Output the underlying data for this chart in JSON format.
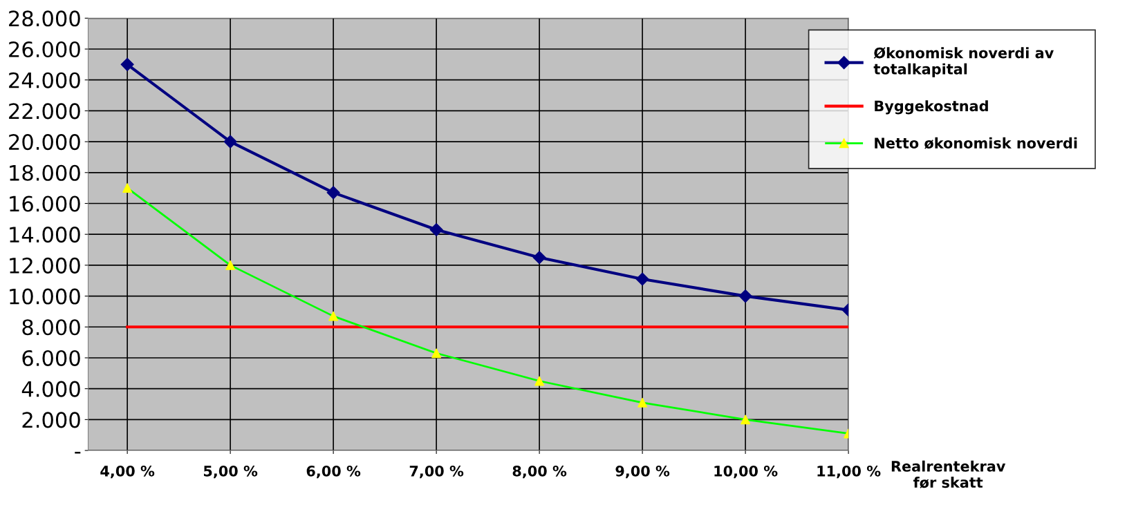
{
  "chart_data": {
    "type": "line",
    "categories": [
      "4,00 %",
      "5,00 %",
      "6,00 %",
      "7,00 %",
      "8,00 %",
      "9,00 %",
      "10,00 %",
      "11,00 %"
    ],
    "xlabel": "Realrentekrav\nfør skatt",
    "series": [
      {
        "name": "Økonomisk noverdi av\ntotalkapital",
        "color": "#000080",
        "marker": "diamond",
        "values": [
          25000,
          20000,
          16700,
          14300,
          12500,
          11100,
          10000,
          9100
        ]
      },
      {
        "name": "Byggekostnad",
        "color": "#ff0000",
        "marker": "none",
        "values": [
          8000,
          8000,
          8000,
          8000,
          8000,
          8000,
          8000,
          8000
        ]
      },
      {
        "name": "Netto økonomisk noverdi",
        "color": "#00ff00",
        "marker": "triangle",
        "colors": [
          "#ffff00",
          "#ffff00",
          "#ffff00",
          "#ffff00",
          "#ffff00",
          "#ffff00",
          "#ffff00",
          "#ffff00"
        ],
        "values": [
          17000,
          12000,
          8700,
          6300,
          4500,
          3100,
          2000,
          1100
        ]
      }
    ],
    "ylim": [
      0,
      28000
    ],
    "yticks": [
      {
        "value": 0,
        "label": "-"
      },
      {
        "value": 2000,
        "label": "2.000"
      },
      {
        "value": 4000,
        "label": "4.000"
      },
      {
        "value": 6000,
        "label": "6.000"
      },
      {
        "value": 8000,
        "label": "8.000"
      },
      {
        "value": 10000,
        "label": "10.000"
      },
      {
        "value": 12000,
        "label": "12.000"
      },
      {
        "value": 14000,
        "label": "14.000"
      },
      {
        "value": 16000,
        "label": "16.000"
      },
      {
        "value": 18000,
        "label": "18.000"
      },
      {
        "value": 20000,
        "label": "20.000"
      },
      {
        "value": 22000,
        "label": "22.000"
      },
      {
        "value": 24000,
        "label": "24.000"
      },
      {
        "value": 26000,
        "label": "26.000"
      },
      {
        "value": 28000,
        "label": "28.000"
      }
    ],
    "grid": true,
    "legend": "top right"
  }
}
